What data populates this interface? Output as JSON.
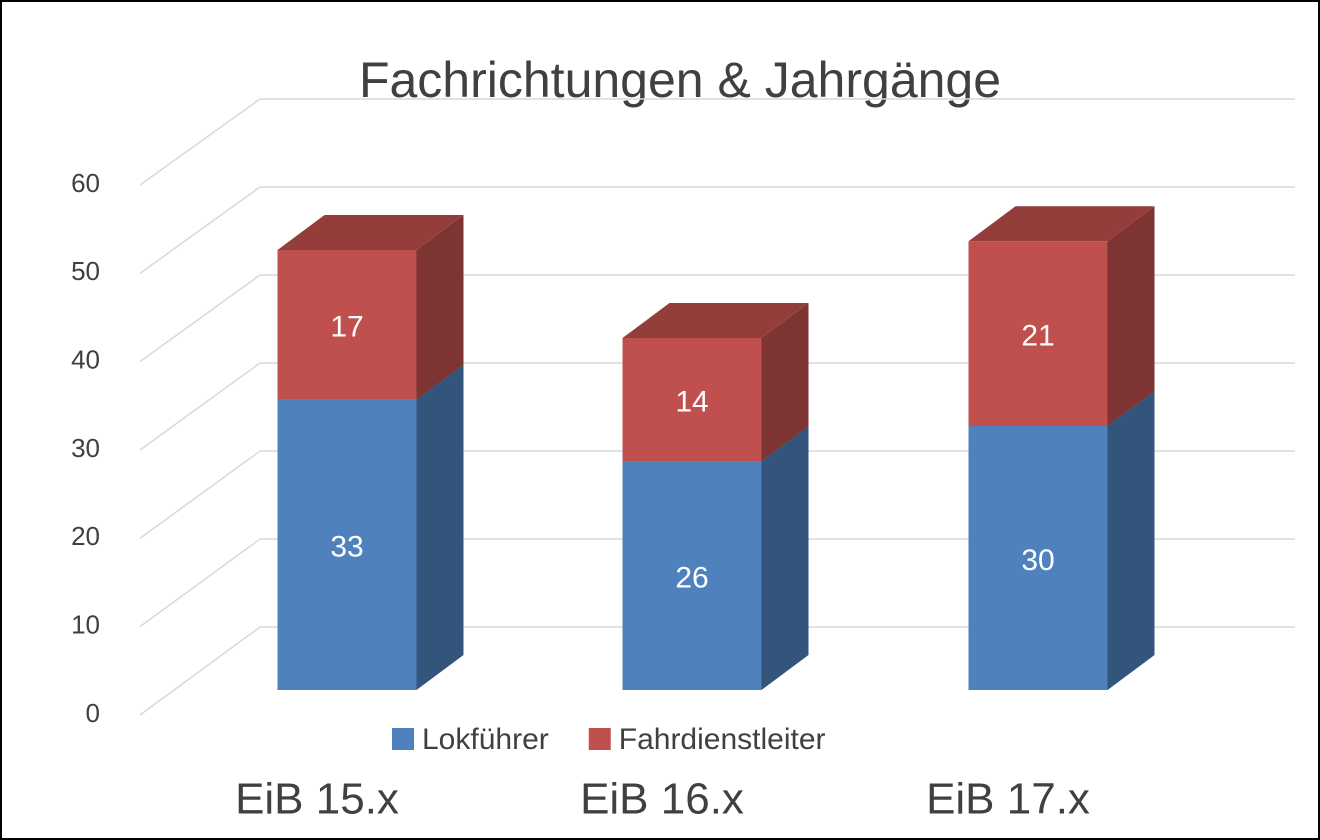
{
  "chart_data": {
    "type": "bar3d_stacked",
    "title": "Fachrichtungen & Jahrgänge",
    "categories": [
      "EiB 15.x",
      "EiB 16.x",
      "EiB 17.x"
    ],
    "series": [
      {
        "name": "Lokführer",
        "color": "#4f81bd",
        "values": [
          33,
          26,
          30
        ]
      },
      {
        "name": "Fahrdienstleiter",
        "color": "#c0504d",
        "values": [
          17,
          14,
          21
        ]
      }
    ],
    "ylim": [
      0,
      60
    ],
    "yticks": [
      0,
      10,
      20,
      30,
      40,
      50,
      60
    ],
    "grid": true,
    "legend": "bottom"
  }
}
